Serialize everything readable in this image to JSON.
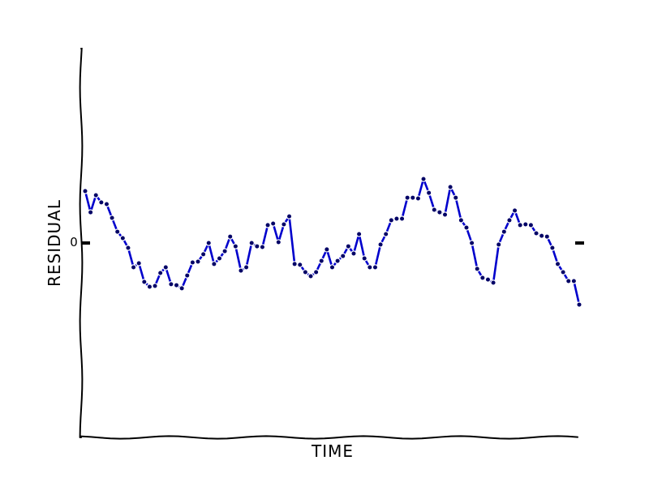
{
  "chart_data": {
    "type": "line",
    "title": "",
    "xlabel": "TIME",
    "ylabel": "RESIDUAL",
    "ylim": [
      -1,
      1
    ],
    "yticks": [
      {
        "value": 0,
        "label": "0"
      }
    ],
    "grid": false,
    "zero_marker_color": "#000000",
    "series": [
      {
        "color": "#0000cc",
        "marker_color": "#000066",
        "values": [
          0.267,
          0.158,
          0.246,
          0.209,
          0.2,
          0.129,
          0.058,
          0.025,
          -0.025,
          -0.125,
          -0.104,
          -0.2,
          -0.225,
          -0.221,
          -0.154,
          -0.125,
          -0.212,
          -0.217,
          -0.233,
          -0.167,
          -0.1,
          -0.096,
          -0.058,
          0.0,
          -0.108,
          -0.079,
          -0.042,
          0.033,
          -0.017,
          -0.142,
          -0.125,
          0.0,
          -0.017,
          -0.021,
          0.092,
          0.1,
          0.004,
          0.096,
          0.137,
          -0.108,
          -0.112,
          -0.15,
          -0.171,
          -0.15,
          -0.092,
          -0.033,
          -0.125,
          -0.092,
          -0.067,
          -0.017,
          -0.054,
          0.046,
          -0.079,
          -0.125,
          -0.125,
          -0.008,
          0.046,
          0.117,
          0.125,
          0.125,
          0.233,
          0.233,
          0.229,
          0.329,
          0.258,
          0.171,
          0.158,
          0.146,
          0.288,
          0.233,
          0.117,
          0.079,
          0.0,
          -0.133,
          -0.179,
          -0.188,
          -0.204,
          -0.008,
          0.058,
          0.117,
          0.167,
          0.092,
          0.096,
          0.092,
          0.05,
          0.037,
          0.033,
          -0.025,
          -0.108,
          -0.15,
          -0.196,
          -0.196,
          -0.317
        ]
      }
    ]
  }
}
